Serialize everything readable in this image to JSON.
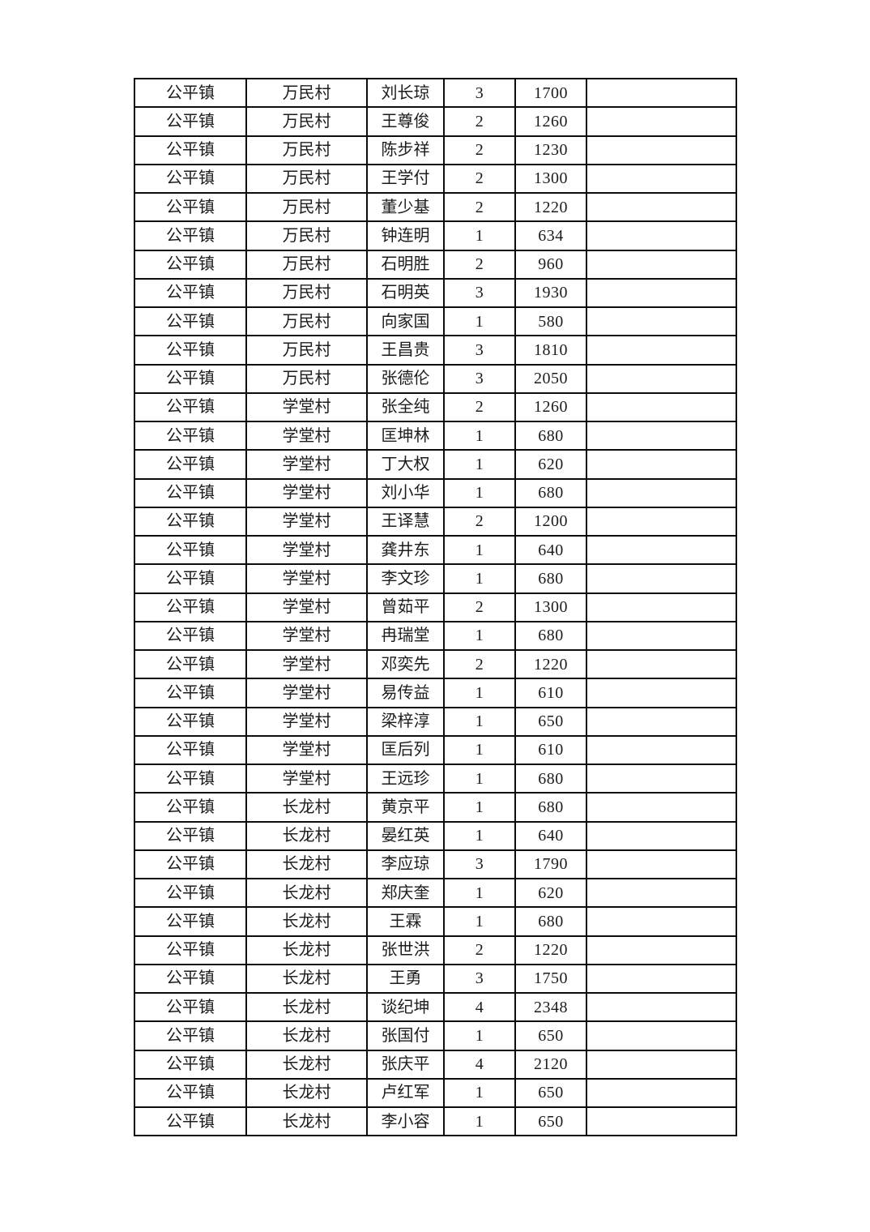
{
  "page": {
    "background": "#ffffff",
    "border_color": "#0d0d0d",
    "text_color": "#1c1c1c"
  },
  "table": {
    "columns": [
      "town",
      "village",
      "name",
      "count",
      "amount",
      "note"
    ],
    "rows": [
      {
        "town": "公平镇",
        "village": "万民村",
        "name": "刘长琼",
        "count": "3",
        "amount": "1700",
        "note": ""
      },
      {
        "town": "公平镇",
        "village": "万民村",
        "name": "王尊俊",
        "count": "2",
        "amount": "1260",
        "note": ""
      },
      {
        "town": "公平镇",
        "village": "万民村",
        "name": "陈步祥",
        "count": "2",
        "amount": "1230",
        "note": ""
      },
      {
        "town": "公平镇",
        "village": "万民村",
        "name": "王学付",
        "count": "2",
        "amount": "1300",
        "note": ""
      },
      {
        "town": "公平镇",
        "village": "万民村",
        "name": "董少基",
        "count": "2",
        "amount": "1220",
        "note": ""
      },
      {
        "town": "公平镇",
        "village": "万民村",
        "name": "钟连明",
        "count": "1",
        "amount": "634",
        "note": ""
      },
      {
        "town": "公平镇",
        "village": "万民村",
        "name": "石明胜",
        "count": "2",
        "amount": "960",
        "note": ""
      },
      {
        "town": "公平镇",
        "village": "万民村",
        "name": "石明英",
        "count": "3",
        "amount": "1930",
        "note": ""
      },
      {
        "town": "公平镇",
        "village": "万民村",
        "name": "向家国",
        "count": "1",
        "amount": "580",
        "note": ""
      },
      {
        "town": "公平镇",
        "village": "万民村",
        "name": "王昌贵",
        "count": "3",
        "amount": "1810",
        "note": ""
      },
      {
        "town": "公平镇",
        "village": "万民村",
        "name": "张德伦",
        "count": "3",
        "amount": "2050",
        "note": ""
      },
      {
        "town": "公平镇",
        "village": "学堂村",
        "name": "张全纯",
        "count": "2",
        "amount": "1260",
        "note": ""
      },
      {
        "town": "公平镇",
        "village": "学堂村",
        "name": "匡坤林",
        "count": "1",
        "amount": "680",
        "note": ""
      },
      {
        "town": "公平镇",
        "village": "学堂村",
        "name": "丁大权",
        "count": "1",
        "amount": "620",
        "note": ""
      },
      {
        "town": "公平镇",
        "village": "学堂村",
        "name": "刘小华",
        "count": "1",
        "amount": "680",
        "note": ""
      },
      {
        "town": "公平镇",
        "village": "学堂村",
        "name": "王译慧",
        "count": "2",
        "amount": "1200",
        "note": ""
      },
      {
        "town": "公平镇",
        "village": "学堂村",
        "name": "龚井东",
        "count": "1",
        "amount": "640",
        "note": ""
      },
      {
        "town": "公平镇",
        "village": "学堂村",
        "name": "李文珍",
        "count": "1",
        "amount": "680",
        "note": ""
      },
      {
        "town": "公平镇",
        "village": "学堂村",
        "name": "曾茹平",
        "count": "2",
        "amount": "1300",
        "note": ""
      },
      {
        "town": "公平镇",
        "village": "学堂村",
        "name": "冉瑞堂",
        "count": "1",
        "amount": "680",
        "note": ""
      },
      {
        "town": "公平镇",
        "village": "学堂村",
        "name": "邓奕先",
        "count": "2",
        "amount": "1220",
        "note": ""
      },
      {
        "town": "公平镇",
        "village": "学堂村",
        "name": "易传益",
        "count": "1",
        "amount": "610",
        "note": ""
      },
      {
        "town": "公平镇",
        "village": "学堂村",
        "name": "梁梓淳",
        "count": "1",
        "amount": "650",
        "note": ""
      },
      {
        "town": "公平镇",
        "village": "学堂村",
        "name": "匡后列",
        "count": "1",
        "amount": "610",
        "note": ""
      },
      {
        "town": "公平镇",
        "village": "学堂村",
        "name": "王远珍",
        "count": "1",
        "amount": "680",
        "note": ""
      },
      {
        "town": "公平镇",
        "village": "长龙村",
        "name": "黄京平",
        "count": "1",
        "amount": "680",
        "note": ""
      },
      {
        "town": "公平镇",
        "village": "长龙村",
        "name": "晏红英",
        "count": "1",
        "amount": "640",
        "note": ""
      },
      {
        "town": "公平镇",
        "village": "长龙村",
        "name": "李应琼",
        "count": "3",
        "amount": "1790",
        "note": ""
      },
      {
        "town": "公平镇",
        "village": "长龙村",
        "name": "郑庆奎",
        "count": "1",
        "amount": "620",
        "note": ""
      },
      {
        "town": "公平镇",
        "village": "长龙村",
        "name": "王霖",
        "count": "1",
        "amount": "680",
        "note": ""
      },
      {
        "town": "公平镇",
        "village": "长龙村",
        "name": "张世洪",
        "count": "2",
        "amount": "1220",
        "note": ""
      },
      {
        "town": "公平镇",
        "village": "长龙村",
        "name": "王勇",
        "count": "3",
        "amount": "1750",
        "note": ""
      },
      {
        "town": "公平镇",
        "village": "长龙村",
        "name": "谈纪坤",
        "count": "4",
        "amount": "2348",
        "note": ""
      },
      {
        "town": "公平镇",
        "village": "长龙村",
        "name": "张国付",
        "count": "1",
        "amount": "650",
        "note": ""
      },
      {
        "town": "公平镇",
        "village": "长龙村",
        "name": "张庆平",
        "count": "4",
        "amount": "2120",
        "note": ""
      },
      {
        "town": "公平镇",
        "village": "长龙村",
        "name": "卢红军",
        "count": "1",
        "amount": "650",
        "note": ""
      },
      {
        "town": "公平镇",
        "village": "长龙村",
        "name": "李小容",
        "count": "1",
        "amount": "650",
        "note": ""
      }
    ]
  }
}
